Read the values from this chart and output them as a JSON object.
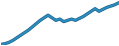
{
  "x": [
    0,
    1,
    2,
    3,
    4,
    5,
    6,
    7,
    8,
    9,
    10,
    11,
    12,
    13,
    14,
    15,
    16,
    17,
    18,
    19,
    20,
    21,
    22,
    23,
    24,
    25,
    26,
    27,
    28,
    29,
    30
  ],
  "y": [
    1,
    2,
    4,
    7,
    11,
    15,
    19,
    23,
    28,
    33,
    38,
    42,
    46,
    42,
    38,
    40,
    36,
    38,
    40,
    38,
    41,
    44,
    48,
    52,
    56,
    52,
    55,
    58,
    60,
    62,
    65
  ],
  "line_color": "#2b8cbf",
  "line_color_dark": "#1a5a80",
  "line_width": 1.5,
  "background_color": "#ffffff",
  "ylim": [
    0,
    68
  ],
  "xlim": [
    0,
    30
  ]
}
